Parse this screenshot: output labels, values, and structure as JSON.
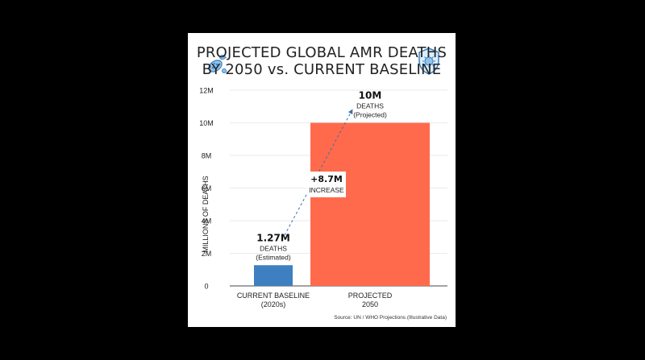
{
  "title_line1": "PROJECTED GLOBAL AMR DEATHS",
  "title_line2": "BY 2050 vs. CURRENT BASELINE",
  "source": "Source: UN / WHO Projections (Illustrative Data)",
  "colors": {
    "baseline": "#3d7fc1",
    "projected": "#ff6a4d",
    "arrow": "#3d6fa8"
  },
  "icons": {
    "left": "bacteria-icon",
    "right": "shield-virus-icon"
  },
  "chart_data": {
    "type": "bar",
    "title": "PROJECTED GLOBAL AMR DEATHS BY 2050 vs. CURRENT BASELINE",
    "ylabel": "MILLIONS OF DEATHS",
    "xlabel": "",
    "ylim": [
      0,
      12000000
    ],
    "yticks": [
      0,
      2000000,
      4000000,
      6000000,
      8000000,
      10000000,
      12000000
    ],
    "ytick_labels": [
      "0",
      "2M",
      "4M",
      "6M",
      "8M",
      "10M",
      "12M"
    ],
    "grid": true,
    "categories": [
      {
        "line1": "CURRENT BASELINE",
        "line2": "(2020s)"
      },
      {
        "line1": "PROJECTED",
        "line2": "2050"
      }
    ],
    "values": [
      1270000,
      10000000
    ],
    "data_labels": [
      {
        "value": "1.27M",
        "line1": "DEATHS",
        "line2": "(Estimated)"
      },
      {
        "value": "10M",
        "line1": "DEATHS",
        "line2": "(Projected)"
      }
    ],
    "annotation": {
      "value": "+8.7M",
      "text": "INCREASE"
    }
  }
}
